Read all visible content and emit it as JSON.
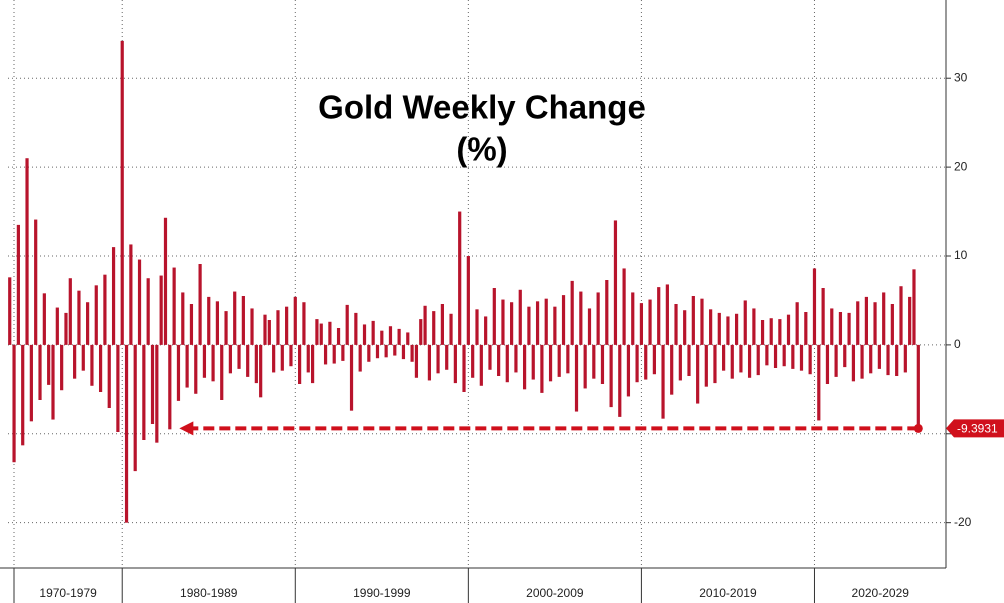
{
  "chart_data": {
    "type": "bar",
    "title": "Gold Weekly Change",
    "subtitle": "(%)",
    "color": "#b8142c",
    "x": [
      1973.5,
      1973.75,
      1974,
      1974.25,
      1974.5,
      1974.75,
      1975,
      1975.25,
      1975.5,
      1975.75,
      1976,
      1976.25,
      1976.5,
      1976.75,
      1977,
      1977.25,
      1977.5,
      1977.75,
      1978,
      1978.25,
      1978.5,
      1978.75,
      1979,
      1979.25,
      1979.5,
      1979.75,
      1980,
      1980.25,
      1980.5,
      1980.75,
      1981,
      1981.25,
      1981.5,
      1981.75,
      1982,
      1982.25,
      1982.5,
      1982.75,
      1983,
      1983.25,
      1983.5,
      1983.75,
      1984,
      1984.25,
      1984.5,
      1984.75,
      1985,
      1985.25,
      1985.5,
      1985.75,
      1986,
      1986.25,
      1986.5,
      1986.75,
      1987,
      1987.25,
      1987.5,
      1987.75,
      1988,
      1988.25,
      1988.5,
      1988.75,
      1989,
      1989.25,
      1989.5,
      1989.75,
      1990,
      1990.25,
      1990.5,
      1990.75,
      1991,
      1991.25,
      1991.5,
      1991.75,
      1992,
      1992.25,
      1992.5,
      1992.75,
      1993,
      1993.25,
      1993.5,
      1993.75,
      1994,
      1994.25,
      1994.5,
      1994.75,
      1995,
      1995.25,
      1995.5,
      1995.75,
      1996,
      1996.25,
      1996.5,
      1996.75,
      1997,
      1997.25,
      1997.5,
      1997.75,
      1998,
      1998.25,
      1998.5,
      1998.75,
      1999,
      1999.25,
      1999.5,
      1999.75,
      2000,
      2000.25,
      2000.5,
      2000.75,
      2001,
      2001.25,
      2001.5,
      2001.75,
      2002,
      2002.25,
      2002.5,
      2002.75,
      2003,
      2003.25,
      2003.5,
      2003.75,
      2004,
      2004.25,
      2004.5,
      2004.75,
      2005,
      2005.25,
      2005.5,
      2005.75,
      2006,
      2006.25,
      2006.5,
      2006.75,
      2007,
      2007.25,
      2007.5,
      2007.75,
      2008,
      2008.25,
      2008.5,
      2008.75,
      2009,
      2009.25,
      2009.5,
      2009.75,
      2010,
      2010.25,
      2010.5,
      2010.75,
      2011,
      2011.25,
      2011.5,
      2011.75,
      2012,
      2012.25,
      2012.5,
      2012.75,
      2013,
      2013.25,
      2013.5,
      2013.75,
      2014,
      2014.25,
      2014.5,
      2014.75,
      2015,
      2015.25,
      2015.5,
      2015.75,
      2016,
      2016.25,
      2016.5,
      2016.75,
      2017,
      2017.25,
      2017.5,
      2017.75,
      2018,
      2018.25,
      2018.5,
      2018.75,
      2019,
      2019.25,
      2019.5,
      2019.75,
      2020,
      2020.25,
      2020.5,
      2020.75,
      2021,
      2021.25,
      2021.5,
      2021.75,
      2022,
      2022.25,
      2022.5,
      2022.75,
      2023,
      2023.25,
      2023.5,
      2023.75,
      2024,
      2024.25,
      2024.5,
      2024.75,
      2025,
      2025.25,
      2025.5,
      2025.75,
      2026
    ],
    "values": [
      7.6,
      -13.2,
      13.5,
      -11.3,
      21.0,
      -8.6,
      14.1,
      -6.2,
      5.8,
      -4.5,
      -8.4,
      4.2,
      -5.1,
      3.6,
      7.5,
      -3.8,
      6.1,
      -2.9,
      4.8,
      -4.6,
      6.7,
      -5.3,
      7.9,
      -7.1,
      11.0,
      -9.8,
      34.2,
      -20.0,
      11.3,
      -14.2,
      9.6,
      -10.7,
      7.5,
      -8.9,
      -11.0,
      7.8,
      14.3,
      -9.5,
      8.7,
      -6.3,
      5.9,
      -4.8,
      4.6,
      -5.5,
      9.1,
      -3.7,
      5.4,
      -4.1,
      4.9,
      -6.2,
      3.8,
      -3.2,
      6.0,
      -2.7,
      5.5,
      -3.6,
      4.1,
      -4.3,
      -5.9,
      3.4,
      2.8,
      -3.1,
      3.9,
      -2.9,
      4.3,
      -2.4,
      5.4,
      -4.4,
      4.8,
      -3.1,
      -4.3,
      2.9,
      2.4,
      -2.2,
      2.6,
      -2.1,
      1.9,
      -1.8,
      4.5,
      -7.4,
      3.6,
      -3.0,
      2.3,
      -1.9,
      2.7,
      -1.5,
      1.6,
      -1.4,
      2.1,
      -1.2,
      1.8,
      -1.6,
      1.4,
      -1.9,
      -3.7,
      2.9,
      4.4,
      -4.0,
      3.8,
      -3.2,
      4.6,
      -2.8,
      3.5,
      -4.3,
      15.0,
      -5.3,
      10.0,
      -3.7,
      4.0,
      -4.6,
      3.2,
      -2.8,
      6.4,
      -3.5,
      5.1,
      -4.2,
      4.8,
      -3.1,
      6.2,
      -5.0,
      4.3,
      -3.9,
      4.9,
      -5.4,
      5.2,
      -4.1,
      4.3,
      -3.6,
      5.6,
      -3.2,
      7.2,
      -7.5,
      6.0,
      -4.9,
      4.1,
      -3.8,
      5.9,
      -4.4,
      7.3,
      -7.0,
      14.0,
      -8.1,
      8.6,
      -5.8,
      5.9,
      -4.2,
      4.7,
      -3.9,
      5.1,
      -3.3,
      6.5,
      -8.3,
      6.8,
      -5.6,
      4.6,
      -4.0,
      3.9,
      -3.5,
      5.5,
      -6.6,
      5.2,
      -4.7,
      4.0,
      -4.3,
      3.6,
      -2.9,
      3.2,
      -3.8,
      3.5,
      -3.1,
      5.0,
      -3.7,
      4.1,
      -3.4,
      2.8,
      -2.3,
      3.0,
      -2.6,
      2.9,
      -2.4,
      3.4,
      -2.7,
      4.8,
      -2.9,
      3.7,
      -3.3,
      8.6,
      -8.5,
      6.4,
      -4.4,
      4.1,
      -3.6,
      3.7,
      -2.5,
      3.6,
      -4.1,
      4.9,
      -3.8,
      5.4,
      -3.2,
      4.8,
      -2.7,
      5.9,
      -3.4,
      4.6,
      -3.5,
      6.6,
      -3.1,
      5.4,
      8.5,
      -9.3931
    ],
    "xlim": [
      1973.4,
      2027.6
    ],
    "ylim": [
      -25.1,
      38.8
    ],
    "yticks": [
      -20,
      -10,
      0,
      10,
      20,
      30
    ],
    "grid": true,
    "decades": [
      {
        "label": "1970-1979",
        "start": 1970,
        "end": 1980
      },
      {
        "label": "1980-1989",
        "start": 1980,
        "end": 1990
      },
      {
        "label": "1990-1999",
        "start": 1990,
        "end": 2000
      },
      {
        "label": "2000-2009",
        "start": 2000,
        "end": 2010
      },
      {
        "label": "2010-2019",
        "start": 2010,
        "end": 2020
      },
      {
        "label": "2020-2029",
        "start": 2020,
        "end": 2030
      }
    ],
    "annotation": {
      "value": -9.3931,
      "label": "-9.3931",
      "x_from": 2026,
      "x_to": 1983.3,
      "color": "#d0101c"
    }
  }
}
